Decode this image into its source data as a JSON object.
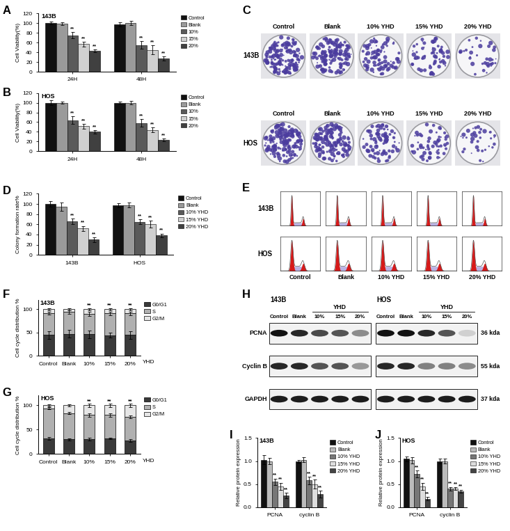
{
  "chart_data": [
    {
      "type": "bar",
      "panel": "A",
      "title": "143B",
      "y_label": "Cell Viability(%)",
      "categories": [
        "24H",
        "48H"
      ],
      "series": [
        {
          "name": "Control",
          "color": "#111111",
          "values": [
            100,
            97
          ],
          "errors": [
            3,
            4
          ],
          "significance": [
            null,
            null
          ]
        },
        {
          "name": "Blank",
          "color": "#9a9a9a",
          "values": [
            99,
            100
          ],
          "errors": [
            3,
            4
          ],
          "significance": [
            null,
            null
          ]
        },
        {
          "name": "10%",
          "color": "#5a5a5a",
          "values": [
            75,
            55
          ],
          "errors": [
            6,
            8
          ],
          "significance": [
            "**",
            "**"
          ]
        },
        {
          "name": "15%",
          "color": "#d0d0d0",
          "values": [
            57,
            45
          ],
          "errors": [
            5,
            9
          ],
          "significance": [
            "**",
            "**"
          ]
        },
        {
          "name": "20%",
          "color": "#404040",
          "values": [
            43,
            27
          ],
          "errors": [
            3,
            4
          ],
          "significance": [
            "**",
            "**"
          ]
        }
      ],
      "ylim": [
        0,
        120
      ],
      "yticks": [
        0,
        20,
        40,
        60,
        80,
        100,
        120
      ],
      "legend": "right"
    },
    {
      "type": "bar",
      "panel": "B",
      "title": "HOS",
      "y_label": "Cell Viability(%)",
      "categories": [
        "24H",
        "48H"
      ],
      "series": [
        {
          "name": "Control",
          "color": "#111111",
          "values": [
            100,
            100
          ],
          "errors": [
            5,
            2
          ],
          "significance": [
            null,
            null
          ]
        },
        {
          "name": "Blank",
          "color": "#9a9a9a",
          "values": [
            100,
            100
          ],
          "errors": [
            2,
            3
          ],
          "significance": [
            null,
            null
          ]
        },
        {
          "name": "10%",
          "color": "#5a5a5a",
          "values": [
            64,
            58
          ],
          "errors": [
            8,
            8
          ],
          "significance": [
            "**",
            "**"
          ]
        },
        {
          "name": "15%",
          "color": "#d0d0d0",
          "values": [
            52,
            44
          ],
          "errors": [
            5,
            5
          ],
          "significance": [
            "**",
            "**"
          ]
        },
        {
          "name": "20%",
          "color": "#404040",
          "values": [
            40,
            23
          ],
          "errors": [
            4,
            3
          ],
          "significance": [
            "**",
            "**"
          ]
        }
      ],
      "ylim": [
        0,
        120
      ],
      "yticks": [
        0,
        20,
        40,
        60,
        80,
        100,
        120
      ],
      "legend": "right"
    },
    {
      "type": "bar",
      "panel": "D",
      "y_label": "Colony formation rate%",
      "categories": [
        "143B",
        "HOS"
      ],
      "series": [
        {
          "name": "Control",
          "color": "#111111",
          "values": [
            100,
            98
          ],
          "errors": [
            5,
            4
          ],
          "significance": [
            null,
            null
          ]
        },
        {
          "name": "Blank",
          "color": "#9a9a9a",
          "values": [
            95,
            98
          ],
          "errors": [
            8,
            5
          ],
          "significance": [
            null,
            null
          ]
        },
        {
          "name": "10% YHD",
          "color": "#5a5a5a",
          "values": [
            66,
            65
          ],
          "errors": [
            5,
            5
          ],
          "significance": [
            "**",
            "**"
          ]
        },
        {
          "name": "15% YHD",
          "color": "#d0d0d0",
          "values": [
            52,
            60
          ],
          "errors": [
            5,
            7
          ],
          "significance": [
            "**",
            "**"
          ]
        },
        {
          "name": "20% YHD",
          "color": "#404040",
          "values": [
            30,
            38
          ],
          "errors": [
            5,
            4
          ],
          "significance": [
            "**",
            "**"
          ]
        }
      ],
      "ylim": [
        0,
        120
      ],
      "yticks": [
        0,
        20,
        40,
        60,
        80,
        100,
        120
      ],
      "legend": "right"
    },
    {
      "type": "bar",
      "panel": "F",
      "title": "143B",
      "y_label": "Cell cycle distribution %",
      "x_label": "YHD",
      "stacked": true,
      "categories": [
        "Control",
        "Blank",
        "10%",
        "15%",
        "20%"
      ],
      "series": [
        {
          "name": "G0/G1",
          "color": "#3a3a3a",
          "values": [
            45,
            47,
            46,
            44,
            45
          ],
          "errors": [
            8,
            8,
            8,
            5,
            8
          ]
        },
        {
          "name": "S",
          "color": "#b0b0b0",
          "values": [
            47,
            47,
            44,
            47,
            46
          ],
          "errors": [
            3,
            4,
            4,
            4,
            4
          ]
        },
        {
          "name": "G2/M",
          "color": "#e6e6e6",
          "values": [
            8,
            6,
            10,
            9,
            9
          ],
          "errors": [
            2,
            2,
            2,
            2,
            2
          ]
        }
      ],
      "annotations": [
        null,
        null,
        "**",
        "**",
        "**"
      ],
      "ylim": [
        0,
        120
      ],
      "yticks": [
        0,
        50,
        100
      ],
      "legend": "right"
    },
    {
      "type": "bar",
      "panel": "G",
      "title": "HOS",
      "y_label": "Cell cycle distribution %",
      "x_label": "YHD",
      "stacked": true,
      "categories": [
        "Control",
        "Blank",
        "10%",
        "15%",
        "20%"
      ],
      "series": [
        {
          "name": "G0/G1",
          "color": "#3a3a3a",
          "values": [
            32,
            30,
            30,
            32,
            28
          ],
          "errors": [
            3,
            2,
            3,
            2,
            3
          ]
        },
        {
          "name": "S",
          "color": "#b0b0b0",
          "values": [
            62,
            54,
            50,
            48,
            48
          ],
          "errors": [
            2,
            2,
            3,
            3,
            3
          ]
        },
        {
          "name": "G2/M",
          "color": "#e6e6e6",
          "values": [
            6,
            16,
            20,
            20,
            24
          ],
          "errors": [
            2,
            2,
            3,
            3,
            3
          ]
        }
      ],
      "annotations": [
        null,
        null,
        "**",
        "**",
        "**"
      ],
      "ylim": [
        0,
        120
      ],
      "yticks": [
        0,
        50,
        100
      ],
      "legend": "right"
    },
    {
      "type": "bar",
      "panel": "I",
      "title": "143B",
      "y_label": "Relative protein expression",
      "categories": [
        "PCNA",
        "cyclin B"
      ],
      "series": [
        {
          "name": "Control",
          "color": "#111111",
          "values": [
            1.03,
            1.0
          ],
          "errors": [
            0.1,
            0.03
          ],
          "significance": [
            null,
            null
          ]
        },
        {
          "name": "Blank",
          "color": "#bbbbbb",
          "values": [
            1.0,
            1.03
          ],
          "errors": [
            0.07,
            0.05
          ],
          "significance": [
            null,
            null
          ]
        },
        {
          "name": "10% YHD",
          "color": "#777777",
          "values": [
            0.55,
            0.58
          ],
          "errors": [
            0.07,
            0.08
          ],
          "significance": [
            "**",
            "**"
          ]
        },
        {
          "name": "15% YHD",
          "color": "#dddddd",
          "values": [
            0.45,
            0.5
          ],
          "errors": [
            0.08,
            0.1
          ],
          "significance": [
            "**",
            "**"
          ]
        },
        {
          "name": "20% YHD",
          "color": "#444444",
          "values": [
            0.25,
            0.28
          ],
          "errors": [
            0.06,
            0.08
          ],
          "significance": [
            "**",
            "**"
          ]
        }
      ],
      "ylim": [
        0,
        1.5
      ],
      "yticks": [
        {
          "value": 0,
          "label": "0.0"
        },
        0.5,
        {
          "value": 1,
          "label": "1.0"
        },
        1.5
      ],
      "legend": "right"
    },
    {
      "type": "bar",
      "panel": "J",
      "title": "HOS",
      "y_label": "Relative protein expression",
      "categories": [
        "PCNA",
        "cyclin B"
      ],
      "series": [
        {
          "name": "Control",
          "color": "#111111",
          "values": [
            1.05,
            1.0
          ],
          "errors": [
            0.05,
            0.05
          ],
          "significance": [
            null,
            null
          ]
        },
        {
          "name": "Blank",
          "color": "#bbbbbb",
          "values": [
            1.02,
            1.0
          ],
          "errors": [
            0.07,
            0.05
          ],
          "significance": [
            null,
            null
          ]
        },
        {
          "name": "10% YHD",
          "color": "#777777",
          "values": [
            0.72,
            0.4
          ],
          "errors": [
            0.08,
            0.04
          ],
          "significance": [
            "**",
            "**"
          ]
        },
        {
          "name": "15% YHD",
          "color": "#dddddd",
          "values": [
            0.45,
            0.4
          ],
          "errors": [
            0.08,
            0.03
          ],
          "significance": [
            "**",
            "**"
          ]
        },
        {
          "name": "20% YHD",
          "color": "#444444",
          "values": [
            0.18,
            0.35
          ],
          "errors": [
            0.04,
            0.03
          ],
          "significance": [
            "**",
            "**"
          ]
        }
      ],
      "ylim": [
        0,
        1.5
      ],
      "yticks": [
        {
          "value": 0,
          "label": "0.0"
        },
        0.5,
        {
          "value": 1,
          "label": "1.0"
        },
        1.5
      ],
      "legend": "right"
    }
  ],
  "colony_panel": {
    "panel": "C",
    "rows": [
      "143B",
      "HOS"
    ],
    "columns": [
      "Control",
      "Blank",
      "10% YHD",
      "15% YHD",
      "20% YHD"
    ]
  },
  "flow_panel": {
    "panel": "E",
    "rows": [
      "143B",
      "HOS"
    ],
    "columns": [
      "Control",
      "Blank",
      "10% YHD",
      "15% YHD",
      "20% YHD"
    ]
  },
  "western_panel": {
    "panel": "H",
    "cell_lines": [
      "143B",
      "HOS"
    ],
    "lanes": [
      "Control",
      "Blank",
      "10%",
      "15%",
      "20%"
    ],
    "group_label": "YHD",
    "proteins": [
      "PCNA",
      "Cyclin B",
      "GAPDH"
    ],
    "sizes": [
      "36 kda",
      "55 kda",
      "37 kda"
    ]
  }
}
